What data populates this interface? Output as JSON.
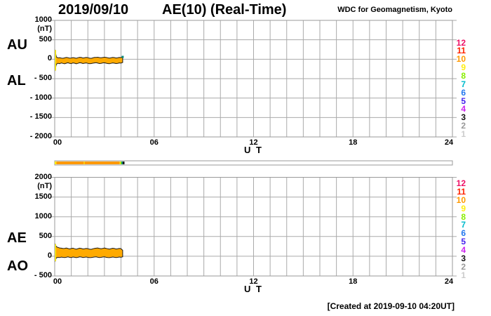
{
  "header": {
    "date": "2019/09/10",
    "title": "AE(10) (Real-Time)",
    "source": "WDC for Geomagnetism, Kyoto"
  },
  "footer": {
    "created_note": "[Created at 2019-09-10 04:20UT]"
  },
  "panels": [
    {
      "left_labels": [
        "AU",
        "AL"
      ],
      "unit": "(nT)",
      "y_ticks": [
        "1000",
        "500",
        "0",
        "- 500",
        "- 1000",
        "- 1500",
        "- 2000"
      ],
      "x_ticks": [
        "00",
        "06",
        "12",
        "18",
        "24"
      ],
      "x_axis_label": "U T"
    },
    {
      "left_labels": [
        "AE",
        "AO"
      ],
      "unit": "(nT)",
      "y_ticks": [
        "2000",
        "1500",
        "1000",
        "500",
        "0",
        "- 500"
      ],
      "x_ticks": [
        "00",
        "06",
        "12",
        "18",
        "24"
      ],
      "x_axis_label": "U T"
    }
  ],
  "station_scale": {
    "numbers": [
      "12",
      "11",
      "10",
      "9",
      "8",
      "7",
      "6",
      "5",
      "4",
      "3",
      "2",
      "1"
    ],
    "colors": [
      "#ee1166",
      "#ff2200",
      "#ff9900",
      "#ffee11",
      "#88ee00",
      "#00bbcc",
      "#2277ee",
      "#4422ee",
      "#cc22ee",
      "#111111",
      "#999999",
      "#cccccc"
    ]
  },
  "colors": {
    "band_fill": "#ffaa00",
    "band_edge": "#1a1a1a",
    "start_spike": "#ffee00",
    "latest_marker": "#008877",
    "grid": "#aaaaaa",
    "frame": "#999999",
    "bar_border": "#999999"
  },
  "chart_data": [
    {
      "type": "area",
      "panel": "AU/AL",
      "y_unit": "nT",
      "x_label": "U T",
      "xlim": [
        0,
        24
      ],
      "ylim": [
        -2000,
        1000
      ],
      "grid": true,
      "x": [
        0,
        0.1,
        0.2,
        0.3,
        0.4,
        0.5,
        0.6,
        0.7,
        0.8,
        0.9,
        1,
        1.1,
        1.2,
        1.3,
        1.4,
        1.5,
        1.6,
        1.7,
        1.8,
        1.9,
        2,
        2.1,
        2.2,
        2.3,
        2.4,
        2.5,
        2.6,
        2.7,
        2.8,
        2.9,
        3,
        3.1,
        3.2,
        3.3,
        3.4,
        3.5,
        3.6,
        3.7,
        3.8,
        3.9,
        4,
        4.1
      ],
      "series": [
        {
          "name": "AU",
          "values": [
            255,
            60,
            35,
            40,
            30,
            25,
            35,
            45,
            40,
            28,
            32,
            42,
            35,
            25,
            38,
            50,
            45,
            32,
            38,
            45,
            40,
            28,
            22,
            35,
            45,
            48,
            52,
            42,
            36,
            44,
            52,
            46,
            36,
            30,
            38,
            48,
            42,
            32,
            38,
            48,
            42,
            60
          ]
        },
        {
          "name": "AL",
          "values": [
            -310,
            -130,
            -105,
            -115,
            -95,
            -108,
            -118,
            -102,
            -92,
            -106,
            -112,
            -96,
            -102,
            -116,
            -106,
            -92,
            -96,
            -112,
            -102,
            -96,
            -106,
            -116,
            -112,
            -102,
            -96,
            -90,
            -100,
            -112,
            -106,
            -96,
            -92,
            -102,
            -112,
            -116,
            -106,
            -96,
            -102,
            -112,
            -106,
            -96,
            -100,
            -85
          ]
        }
      ]
    },
    {
      "type": "area",
      "panel": "AE/AO",
      "y_unit": "nT",
      "x_label": "U T",
      "xlim": [
        0,
        24
      ],
      "ylim": [
        -500,
        2000
      ],
      "grid": true,
      "x": [
        0,
        0.1,
        0.2,
        0.3,
        0.4,
        0.5,
        0.6,
        0.7,
        0.8,
        0.9,
        1,
        1.1,
        1.2,
        1.3,
        1.4,
        1.5,
        1.6,
        1.7,
        1.8,
        1.9,
        2,
        2.1,
        2.2,
        2.3,
        2.4,
        2.5,
        2.6,
        2.7,
        2.8,
        2.9,
        3,
        3.1,
        3.2,
        3.3,
        3.4,
        3.5,
        3.6,
        3.7,
        3.8,
        3.9,
        4,
        4.1
      ],
      "series": [
        {
          "name": "AE",
          "values": [
            325,
            240,
            225,
            210,
            205,
            195,
            200,
            210,
            195,
            185,
            195,
            205,
            190,
            180,
            192,
            205,
            198,
            185,
            190,
            200,
            192,
            180,
            175,
            188,
            198,
            205,
            210,
            198,
            188,
            198,
            208,
            200,
            188,
            182,
            192,
            202,
            196,
            184,
            190,
            200,
            192,
            150
          ]
        },
        {
          "name": "AO",
          "values": [
            -145,
            -40,
            -28,
            -34,
            -22,
            -28,
            -32,
            -26,
            -16,
            -28,
            -32,
            -20,
            -26,
            -36,
            -28,
            -16,
            -20,
            -32,
            -26,
            -20,
            -28,
            -36,
            -32,
            -26,
            -20,
            -16,
            -26,
            -32,
            -28,
            -20,
            -16,
            -26,
            -32,
            -36,
            -28,
            -20,
            -26,
            -32,
            -28,
            -20,
            -26,
            -15
          ]
        }
      ]
    },
    {
      "type": "coverage-bar",
      "xlim": [
        0,
        24
      ],
      "segments": [
        {
          "from": 0,
          "to": 0.1,
          "color": "#ffee00"
        },
        {
          "from": 0.1,
          "to": 1.75,
          "color": "#ff9900"
        },
        {
          "from": 1.75,
          "to": 1.82,
          "color": "#ffcc00"
        },
        {
          "from": 1.82,
          "to": 3.92,
          "color": "#ff9900"
        },
        {
          "from": 3.92,
          "to": 3.99,
          "color": "#ffee00"
        },
        {
          "from": 3.99,
          "to": 4.05,
          "color": "#33cc00"
        },
        {
          "from": 4.05,
          "to": 4.11,
          "color": "#007788"
        },
        {
          "from": 4.11,
          "to": 4.21,
          "color": "#111111"
        }
      ]
    }
  ]
}
